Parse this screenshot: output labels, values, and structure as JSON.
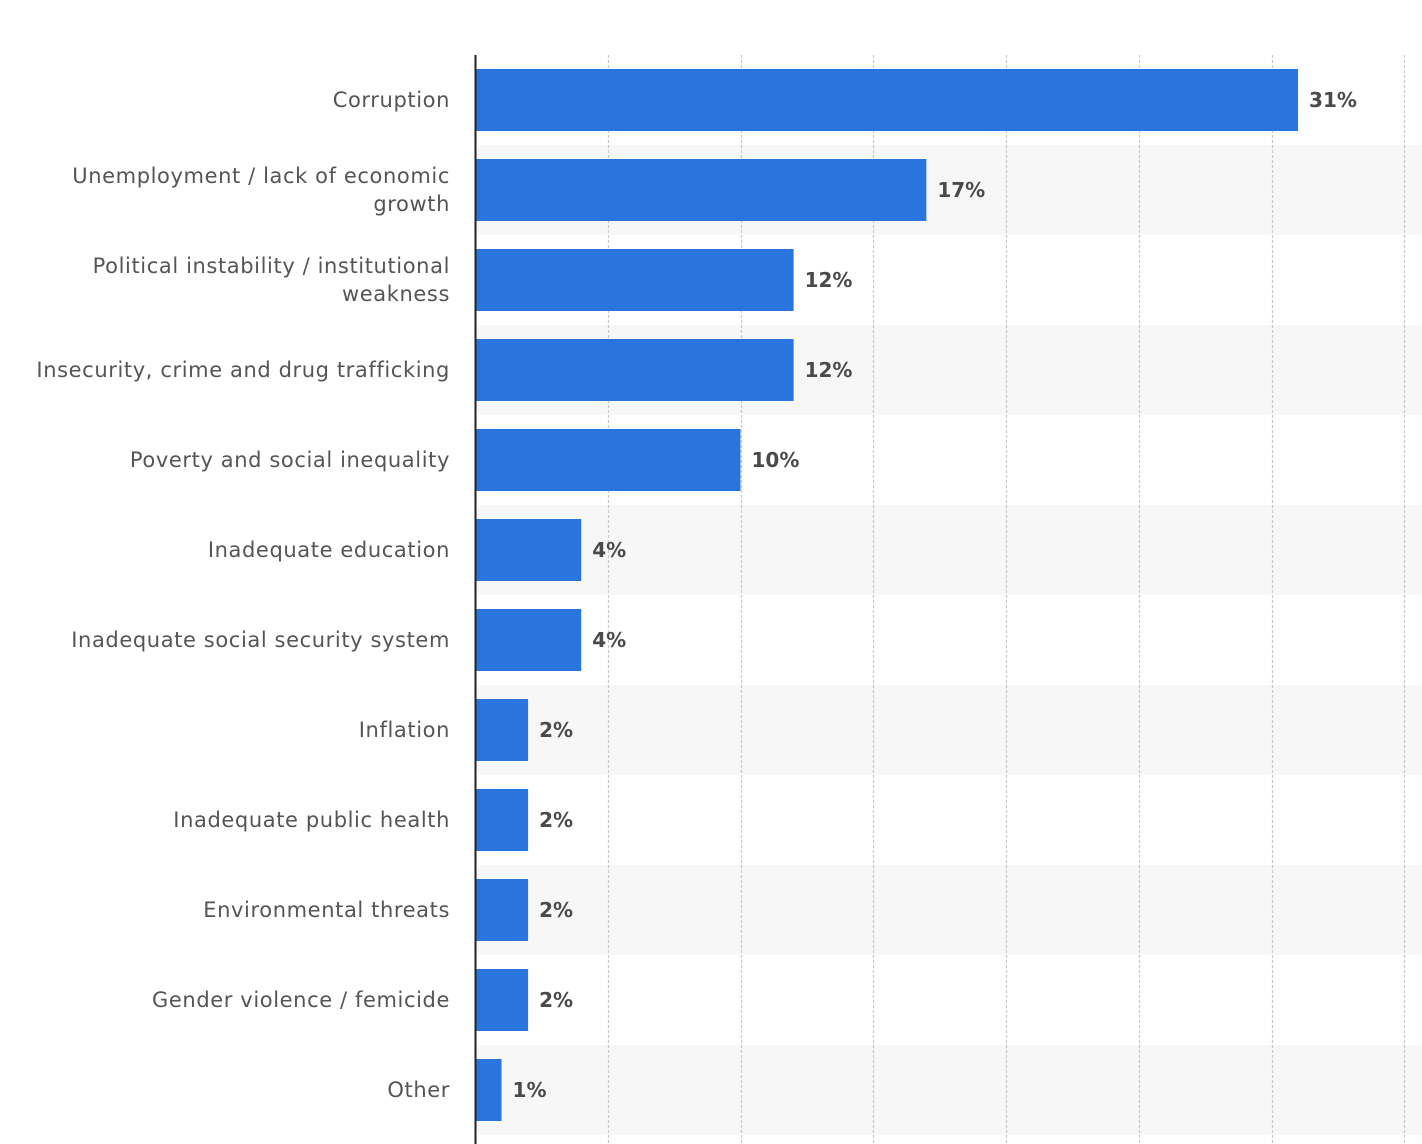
{
  "chart_data": {
    "type": "bar",
    "orientation": "horizontal",
    "categories": [
      [
        "Corruption"
      ],
      [
        "Unemployment / lack of economic",
        "growth"
      ],
      [
        "Political instability / institutional",
        "weakness"
      ],
      [
        "Insecurity, crime and drug trafficking"
      ],
      [
        "Poverty and social inequality"
      ],
      [
        "Inadequate education"
      ],
      [
        "Inadequate social security system"
      ],
      [
        "Inflation"
      ],
      [
        "Inadequate public health"
      ],
      [
        "Environmental threats"
      ],
      [
        "Gender violence / femicide"
      ],
      [
        "Other"
      ]
    ],
    "values": [
      31,
      17,
      12,
      12,
      10,
      4,
      4,
      2,
      2,
      2,
      2,
      1
    ],
    "value_labels": [
      "31%",
      "17%",
      "12%",
      "12%",
      "10%",
      "4%",
      "4%",
      "2%",
      "2%",
      "2%",
      "2%",
      "1%"
    ],
    "xlim": [
      0,
      35
    ],
    "x_gridlines": [
      5,
      10,
      15,
      20,
      25,
      30,
      35
    ],
    "grid": true,
    "legend": "none",
    "colors": {
      "bar": "#2a75dd",
      "band": "#f7f7f7",
      "grid": "#c8c8c8",
      "axis": "#222222"
    }
  }
}
